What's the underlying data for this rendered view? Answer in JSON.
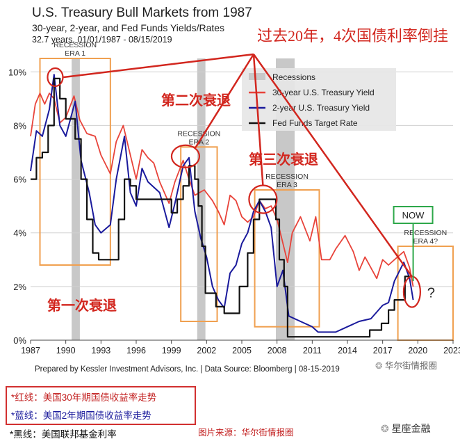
{
  "header": {
    "title": "U.S. Treasury Bull Markets from 1987",
    "subtitle": "30-year, 2-year, and Fed Funds Yields/Rates",
    "period": "32.7 years, 01/01/1987 - 08/15/2019"
  },
  "annotations": {
    "top": "过去20年，4次国债利率倒挂",
    "second": "第二次衰退",
    "third": "第三次衰退",
    "first": "第一次衰退",
    "now": "NOW",
    "question": "?"
  },
  "footer": "Prepared by Kessler Investment Advisors, Inc. | Data Source: Bloomberg | 08-15-2019",
  "watermark": "华尔街情报圈",
  "watermark2": "星座金融",
  "source_note": "图片来源：华尔街情报圈",
  "notes": {
    "red": "*红线：美国30年期国债收益率走势",
    "blue": "*蓝线：美国2年期国债收益率走势",
    "black": "*黑线：美国联邦基金利率"
  },
  "colors": {
    "red": "#e8433a",
    "blue": "#1a1a9c",
    "black": "#111111",
    "recession": "#c8c8c8",
    "era_box": "#f0a050",
    "annotation": "#d2261e",
    "now_box": "#2ea84a"
  },
  "chart_data": {
    "type": "line",
    "xlabel": "",
    "ylabel": "",
    "xlim": [
      1987,
      2023
    ],
    "ylim": [
      0,
      10.5
    ],
    "x_ticks": [
      "1987",
      "1990",
      "1993",
      "1996",
      "1999",
      "2002",
      "2005",
      "2008",
      "2011",
      "2014",
      "2017",
      "2020",
      "2023"
    ],
    "y_ticks": [
      "0%",
      "2%",
      "4%",
      "6%",
      "8%",
      "10%"
    ],
    "legend": {
      "placement": "top-right",
      "entries": [
        "Recessions",
        "30-year U.S. Treasury Yield",
        "2-year U.S. Treasury Yield",
        "Fed Funds Target Rate"
      ]
    },
    "recessions": [
      [
        1990.5,
        1991.2
      ],
      [
        2001.2,
        2001.9
      ],
      [
        2007.9,
        2009.5
      ]
    ],
    "eras": [
      {
        "label": "RECESSION ERA 1",
        "x": [
          1987.8,
          1993.8
        ],
        "y": [
          2.8,
          10.5
        ]
      },
      {
        "label": "RECESSION ERA 2",
        "x": [
          1999.8,
          2002.9
        ],
        "y": [
          0.7,
          7.2
        ]
      },
      {
        "label": "RECESSION ERA 3",
        "x": [
          2006.1,
          2011.6
        ],
        "y": [
          0.5,
          5.6
        ]
      },
      {
        "label": "RECESSION ERA 4?",
        "x": [
          2018.3,
          2023.0
        ],
        "y": [
          0.0,
          3.5
        ]
      }
    ],
    "series": [
      {
        "name": "30-year U.S. Treasury Yield",
        "x": [
          1987,
          1987.4,
          1987.8,
          1988.2,
          1988.6,
          1989,
          1989.5,
          1990,
          1990.7,
          1991.2,
          1991.8,
          1992.5,
          1993,
          1993.8,
          1994.3,
          1994.9,
          1995.5,
          1996,
          1996.5,
          1997,
          1997.5,
          1998,
          1998.8,
          1999.3,
          2000,
          2000.5,
          2001,
          2001.8,
          2002.5,
          2003,
          2003.5,
          2004,
          2004.5,
          2005,
          2005.5,
          2006,
          2006.5,
          2007,
          2007.5,
          2008,
          2008.9,
          2009.3,
          2010,
          2010.8,
          2011.3,
          2011.8,
          2012.5,
          2013,
          2013.8,
          2014.5,
          2015,
          2015.5,
          2016.5,
          2017,
          2017.5,
          2018,
          2018.8,
          2019.3,
          2019.6
        ],
        "values": [
          7.6,
          8.8,
          9.2,
          8.8,
          9.2,
          9.0,
          8.1,
          8.3,
          9.1,
          8.2,
          7.7,
          7.6,
          6.9,
          6.2,
          7.4,
          8.0,
          6.9,
          6.0,
          7.1,
          6.8,
          6.6,
          5.9,
          5.1,
          5.9,
          6.7,
          6.0,
          5.4,
          5.6,
          5.2,
          4.8,
          4.3,
          5.4,
          5.2,
          4.6,
          4.4,
          4.6,
          5.2,
          4.9,
          5.0,
          4.5,
          2.9,
          4.0,
          4.6,
          3.7,
          4.6,
          3.0,
          3.0,
          3.4,
          3.9,
          3.3,
          2.6,
          3.1,
          2.3,
          3.0,
          2.8,
          3.0,
          3.3,
          2.7,
          2.0
        ]
      },
      {
        "name": "2-year U.S. Treasury Yield",
        "x": [
          1987,
          1987.5,
          1988,
          1988.6,
          1989,
          1989.5,
          1990,
          1990.8,
          1991.3,
          1992,
          1992.5,
          1993,
          1993.8,
          1994.3,
          1995,
          1995.5,
          1996,
          1996.5,
          1997,
          1998,
          1998.8,
          1999.3,
          2000,
          2000.5,
          2001,
          2001.5,
          2002,
          2002.5,
          2003,
          2003.5,
          2004,
          2004.5,
          2005,
          2005.5,
          2006,
          2006.5,
          2007,
          2007.5,
          2008,
          2008.5,
          2009,
          2010,
          2011,
          2011.5,
          2012,
          2013,
          2014,
          2015,
          2016,
          2017,
          2017.5,
          2018,
          2018.8,
          2019.3,
          2019.6
        ],
        "values": [
          6.3,
          7.8,
          7.6,
          8.6,
          9.9,
          8.0,
          7.6,
          8.9,
          6.7,
          5.5,
          4.3,
          4.0,
          4.3,
          6.0,
          7.6,
          5.5,
          5.0,
          6.4,
          5.9,
          5.5,
          4.2,
          5.1,
          6.5,
          6.8,
          4.8,
          3.8,
          3.1,
          2.0,
          1.5,
          1.2,
          2.5,
          2.8,
          3.6,
          4.0,
          4.8,
          5.2,
          4.8,
          4.2,
          2.0,
          2.6,
          0.9,
          0.7,
          0.5,
          0.3,
          0.3,
          0.3,
          0.5,
          0.7,
          0.8,
          1.3,
          1.4,
          2.2,
          2.9,
          2.3,
          1.5
        ]
      },
      {
        "name": "Fed Funds Target Rate",
        "x": [
          1987,
          1987.5,
          1988,
          1988.5,
          1989,
          1989.5,
          1990,
          1990.8,
          1991.3,
          1991.8,
          1992.3,
          1992.8,
          1994,
          1994.5,
          1995,
          1995.5,
          1996,
          1998.5,
          1999,
          1999.5,
          2000,
          2000.5,
          2001,
          2001.3,
          2001.6,
          2001.9,
          2002.8,
          2003.5,
          2004.4,
          2004.8,
          2005.5,
          2006,
          2006.5,
          2007.6,
          2007.9,
          2008.2,
          2008.6,
          2008.9,
          2015.9,
          2016.9,
          2017.5,
          2018,
          2018.9,
          2019.5
        ],
        "values": [
          6.0,
          6.8,
          7.0,
          8.0,
          9.75,
          9.0,
          8.25,
          7.5,
          6.0,
          4.5,
          3.25,
          3.0,
          3.0,
          4.5,
          6.0,
          5.75,
          5.25,
          5.25,
          4.75,
          5.25,
          5.75,
          6.5,
          6.0,
          5.0,
          3.5,
          1.75,
          1.25,
          1.0,
          1.0,
          2.0,
          3.25,
          4.5,
          5.25,
          5.25,
          4.5,
          3.0,
          2.0,
          0.125,
          0.375,
          0.625,
          1.125,
          1.5,
          2.375,
          2.375
        ]
      }
    ]
  }
}
